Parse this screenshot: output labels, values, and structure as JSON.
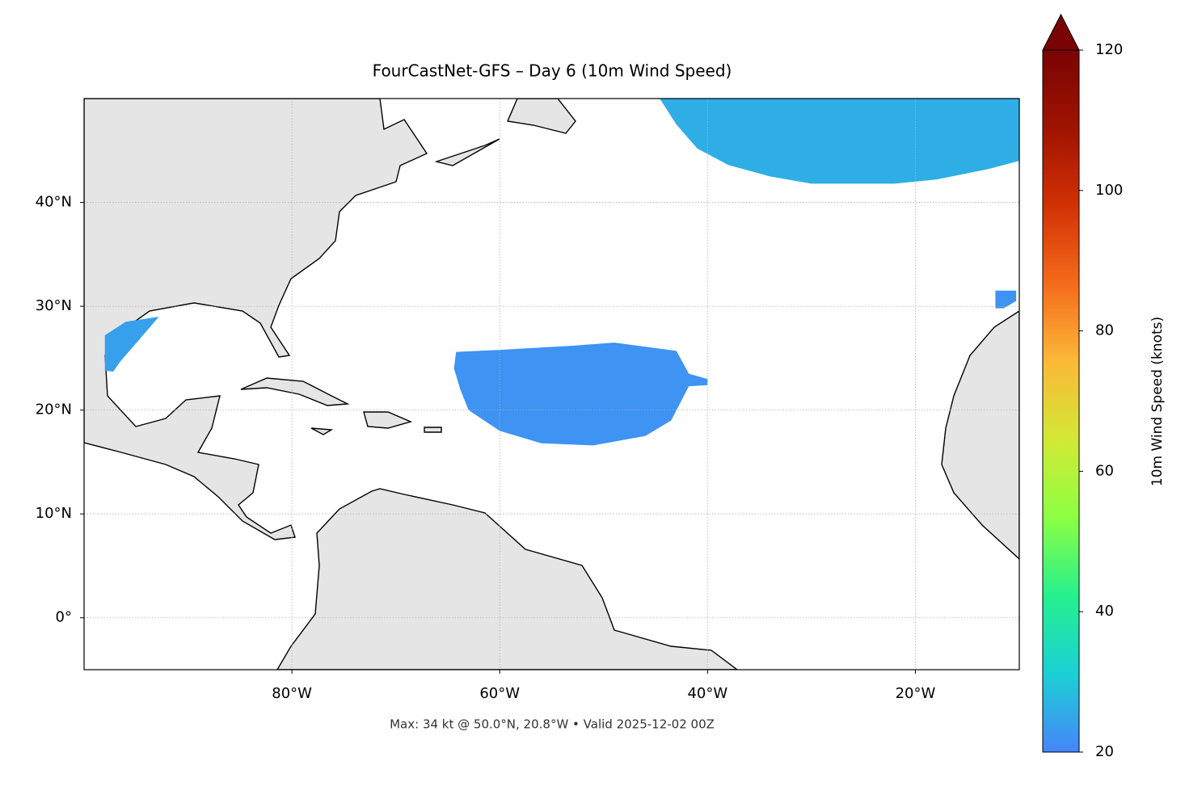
{
  "chart_data": {
    "type": "map",
    "title": "FourCastNet-GFS – Day 6 (10m Wind Speed)",
    "footer": "Max: 34 kt @ 50.0°N, 20.8°W • Valid 2025-12-02 00Z",
    "xlim": [
      -100,
      -10
    ],
    "ylim": [
      -5,
      50
    ],
    "xticks": [
      {
        "value": -80,
        "label": "80°W"
      },
      {
        "value": -60,
        "label": "60°W"
      },
      {
        "value": -40,
        "label": "40°W"
      },
      {
        "value": -20,
        "label": "20°W"
      }
    ],
    "yticks": [
      {
        "value": 0,
        "label": "0°"
      },
      {
        "value": 10,
        "label": "10°N"
      },
      {
        "value": 20,
        "label": "20°N"
      },
      {
        "value": 30,
        "label": "30°N"
      },
      {
        "value": 40,
        "label": "40°N"
      }
    ],
    "grid": true,
    "colorbar": {
      "label": "10m Wind Speed (knots)",
      "lim": [
        20,
        120
      ],
      "ticks": [
        20,
        40,
        60,
        80,
        100,
        120
      ],
      "colors": [
        "#4685fa",
        "#1bd0d5",
        "#25f08e",
        "#8cff43",
        "#d2e935",
        "#fbb938",
        "#f56b1b",
        "#d23105",
        "#a01302",
        "#7a0403"
      ]
    },
    "swaths": [
      {
        "speed": 26,
        "lon": [
          -44.6,
          -10,
          -10,
          -13,
          -18,
          -22,
          -30,
          -34,
          -38,
          -41,
          -43
        ],
        "lat": [
          50,
          50,
          44,
          43.2,
          42.2,
          41.8,
          41.8,
          42.5,
          43.6,
          45.2,
          47.5
        ]
      },
      {
        "speed": 22,
        "lon": [
          -64.2,
          -60,
          -53,
          -49,
          -43,
          -41.8,
          -40,
          -40,
          -41.8,
          -43.5,
          -46,
          -51,
          -56,
          -60,
          -63,
          -63.8,
          -64.4
        ],
        "lat": [
          25.6,
          25.8,
          26.2,
          26.5,
          25.7,
          23.5,
          23,
          22.4,
          22.3,
          19,
          17.5,
          16.6,
          16.8,
          18,
          20,
          22,
          24
        ]
      },
      {
        "speed": 24,
        "lon": [
          -98,
          -96,
          -92.8,
          -94.5,
          -96.5,
          -97.2,
          -98,
          -98
        ],
        "lat": [
          27.2,
          28.5,
          29,
          27,
          24.7,
          23.7,
          23.8,
          25.5
        ]
      },
      {
        "speed": 22,
        "lon": [
          -12.3,
          -10.3,
          -10.3,
          -11.5,
          -12.3
        ],
        "lat": [
          31.5,
          31.5,
          30.5,
          29.8,
          29.8
        ]
      }
    ]
  }
}
